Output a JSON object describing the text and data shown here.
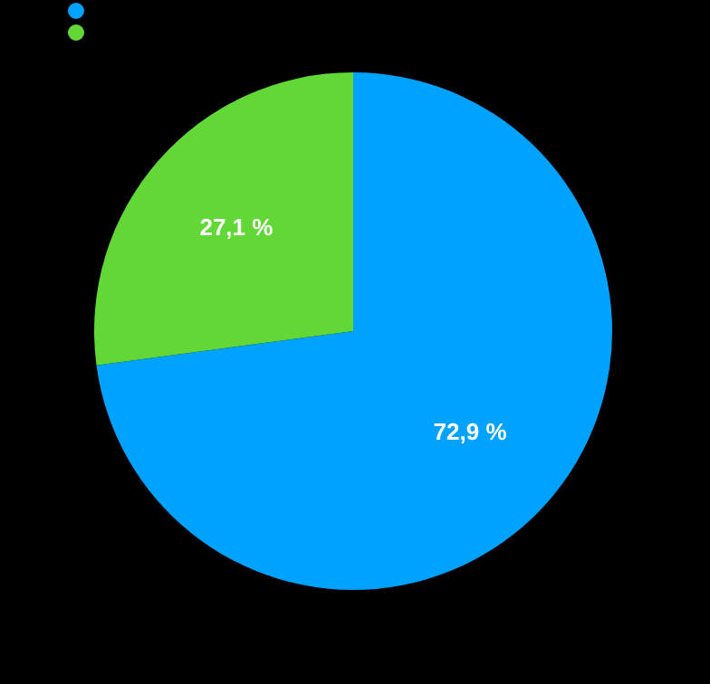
{
  "chart_data": {
    "type": "pie",
    "categories": [
      null,
      null
    ],
    "values": [
      72.9,
      27.1
    ],
    "colors": [
      "#00a2ff",
      "#61d836"
    ],
    "value_labels": [
      "72,9 %",
      "27,1 %"
    ]
  }
}
